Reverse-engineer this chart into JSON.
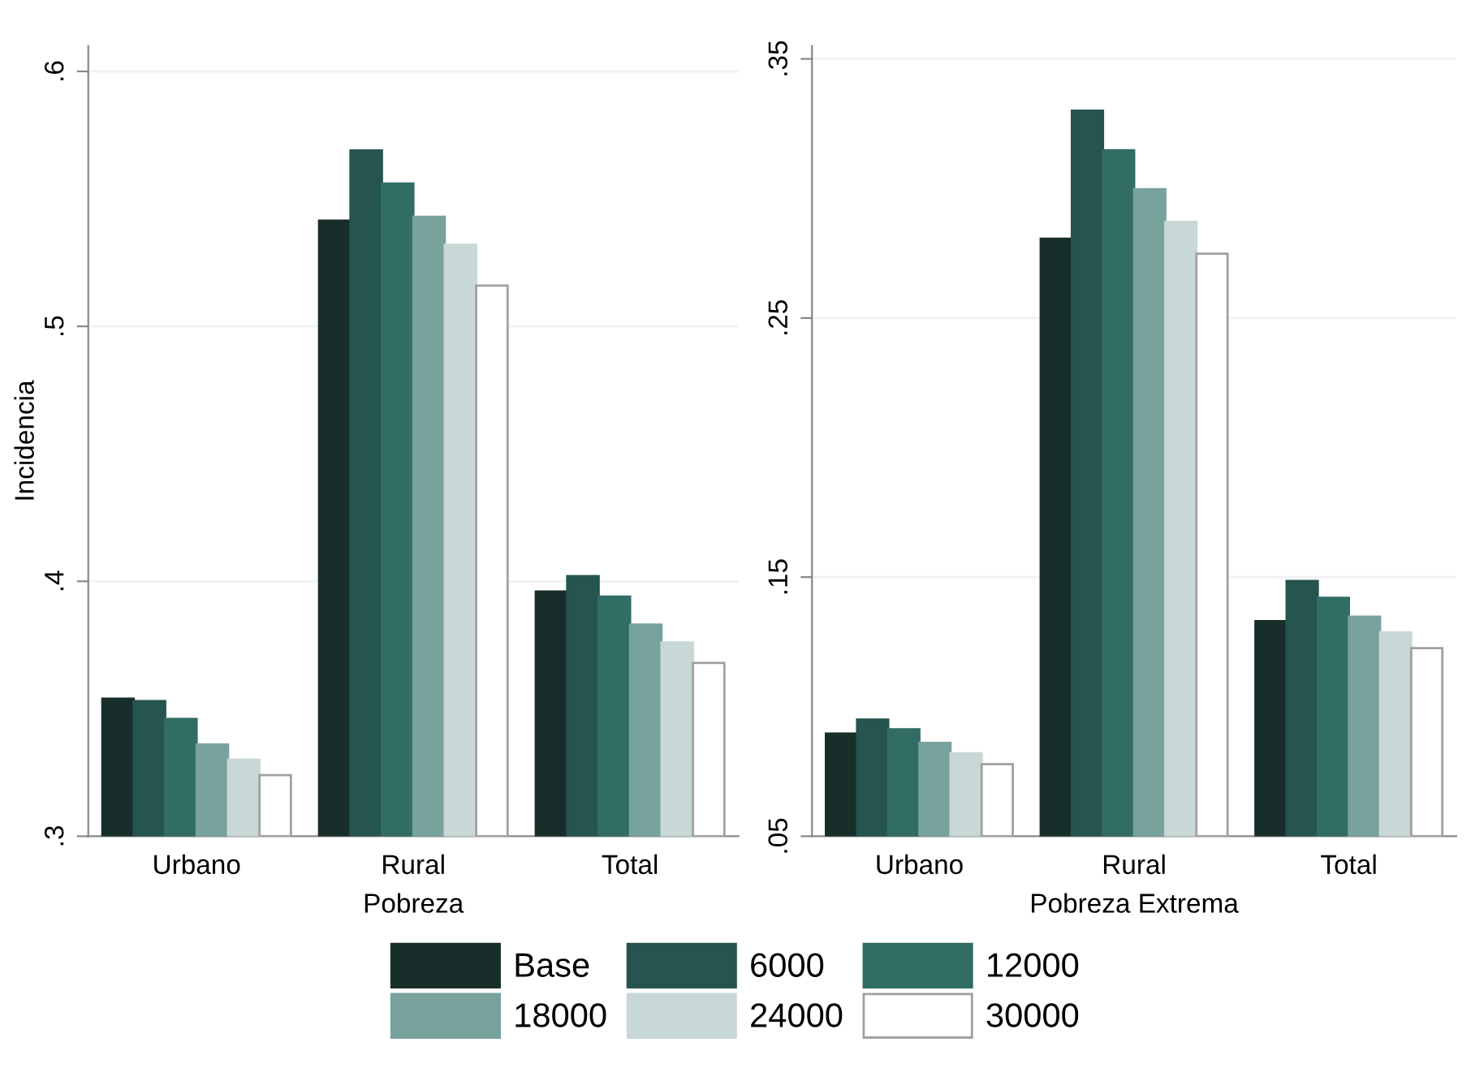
{
  "chart_data": [
    {
      "type": "bar",
      "xlabel": "Pobreza",
      "ylabel": "Incidencia",
      "categories": [
        "Urbano",
        "Rural",
        "Total"
      ],
      "series": [
        {
          "name": "Base",
          "color": "#182e2b",
          "values": [
            0.354,
            0.5415,
            0.396
          ]
        },
        {
          "name": "6000",
          "color": "#26544e",
          "values": [
            0.353,
            0.569,
            0.402
          ]
        },
        {
          "name": "12000",
          "color": "#316d65",
          "values": [
            0.346,
            0.556,
            0.394
          ]
        },
        {
          "name": "18000",
          "color": "#78a29c",
          "values": [
            0.336,
            0.543,
            0.383
          ]
        },
        {
          "name": "24000",
          "color": "#c7d8d6",
          "values": [
            0.33,
            0.532,
            0.376
          ]
        },
        {
          "name": "30000",
          "color": "#ffffff",
          "values": [
            0.324,
            0.516,
            0.368
          ]
        }
      ],
      "ylim": [
        0.3,
        0.61
      ],
      "yticks": [
        {
          "value": 0.3,
          "label": ".3"
        },
        {
          "value": 0.4,
          "label": ".4"
        },
        {
          "value": 0.5,
          "label": ".5"
        },
        {
          "value": 0.6,
          "label": ".6"
        }
      ],
      "grid": "y",
      "legend": "bottom"
    },
    {
      "type": "bar",
      "xlabel": "Pobreza Extrema",
      "categories": [
        "Urbano",
        "Rural",
        "Total"
      ],
      "series": [
        {
          "color": "#182e2b",
          "values": [
            0.0896,
            0.2806,
            0.133
          ]
        },
        {
          "color": "#26544e",
          "values": [
            0.095,
            0.33,
            0.1485
          ]
        },
        {
          "color": "#316d65",
          "values": [
            0.0913,
            0.3147,
            0.142
          ]
        },
        {
          "color": "#78a29c",
          "values": [
            0.086,
            0.2997,
            0.1347
          ]
        },
        {
          "color": "#c7d8d6",
          "values": [
            0.082,
            0.2871,
            0.1287
          ]
        },
        {
          "color": "#ffffff",
          "values": [
            0.0778,
            0.2748,
            0.1226
          ]
        }
      ],
      "ylim": [
        0.05,
        0.355
      ],
      "yticks": [
        {
          "value": 0.05,
          "label": ".05"
        },
        {
          "value": 0.15,
          "label": ".15"
        },
        {
          "value": 0.25,
          "label": ".25"
        },
        {
          "value": 0.35,
          "label": ".35"
        }
      ],
      "grid": "y"
    }
  ]
}
